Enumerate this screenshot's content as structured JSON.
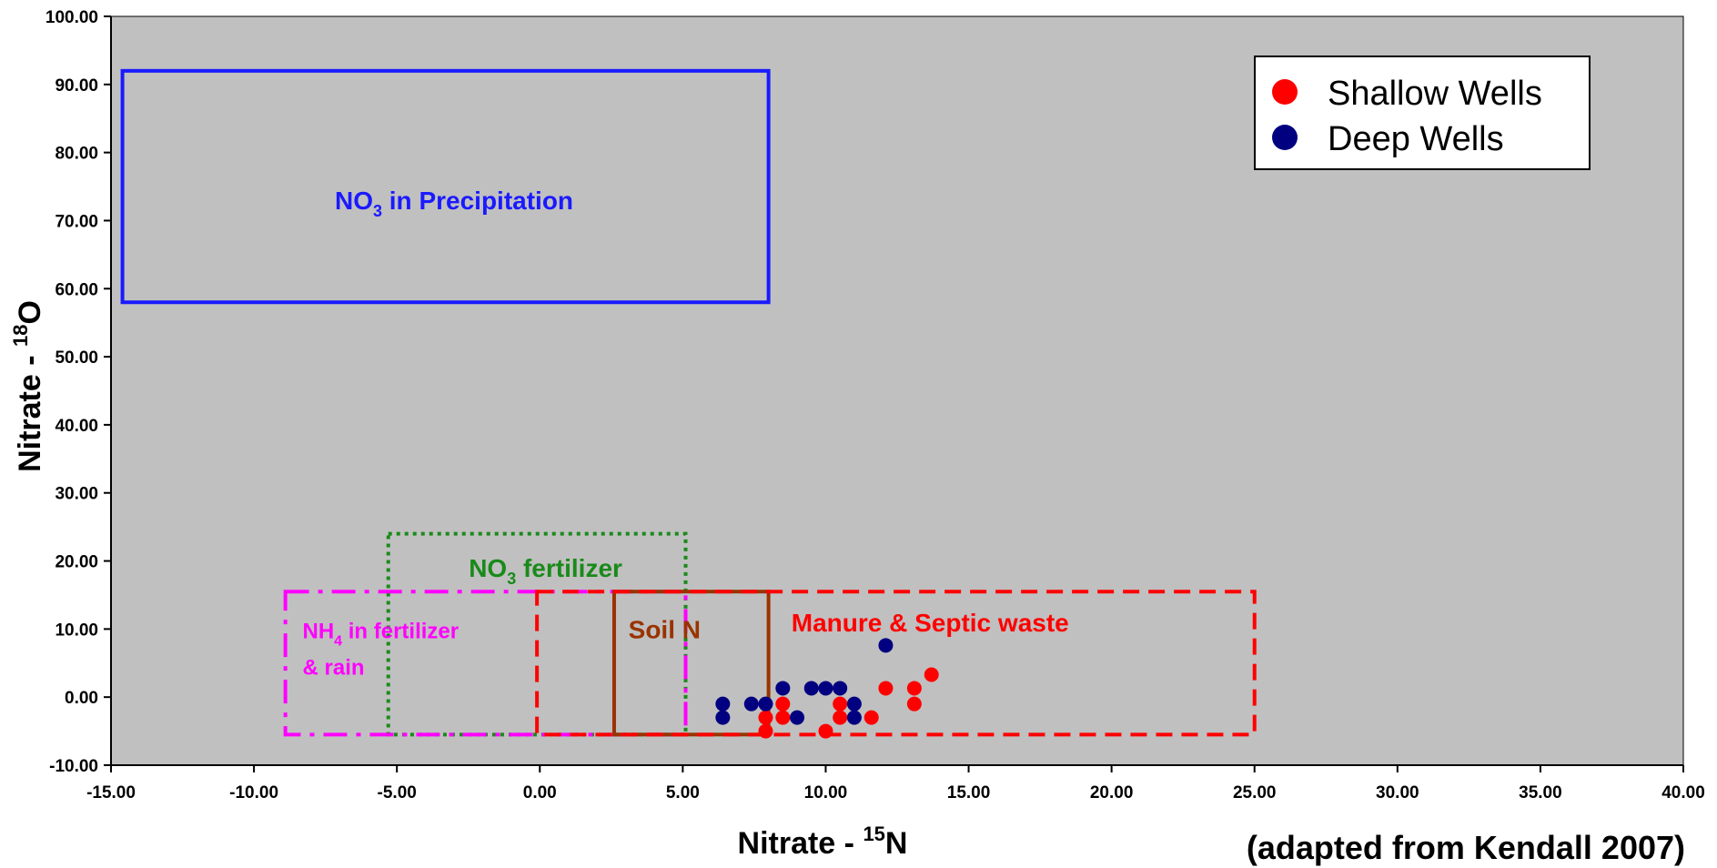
{
  "chart_data": {
    "type": "scatter",
    "xlabel": {
      "main": "Nitrate - ",
      "sup": "15",
      "tail": "N"
    },
    "ylabel": {
      "main": "Nitrate - ",
      "sup": "18",
      "tail": "O"
    },
    "xlim": [
      -15,
      40
    ],
    "ylim": [
      -10,
      100
    ],
    "x_ticks": [
      "-15.00",
      "-10.00",
      "-5.00",
      "0.00",
      "5.00",
      "10.00",
      "15.00",
      "20.00",
      "25.00",
      "30.00",
      "35.00",
      "40.00"
    ],
    "y_ticks": [
      "-10.00",
      "0.00",
      "10.00",
      "20.00",
      "30.00",
      "40.00",
      "50.00",
      "60.00",
      "70.00",
      "80.00",
      "90.00",
      "100.00"
    ],
    "grid": false,
    "plot_background": "#c0c0c0",
    "legend_position": "top-right",
    "credit": "(adapted from Kendall 2007)",
    "regions": [
      {
        "id": "precip",
        "label_main": "NO",
        "label_sub": "3",
        "label_tail": " in Precipitation",
        "color": "#1a1aff",
        "style": "solid",
        "x": [
          -14.6,
          8.0
        ],
        "y": [
          58,
          92
        ],
        "label_at": [
          -3.0,
          73
        ]
      },
      {
        "id": "no3fert",
        "label_main": "NO",
        "label_sub": "3",
        "label_tail": " fertilizer",
        "color": "#1a8a1a",
        "style": "dotted",
        "x": [
          -5.3,
          5.1
        ],
        "y": [
          -5.5,
          24
        ],
        "label_at": [
          0.2,
          19
        ]
      },
      {
        "id": "nh4",
        "label_main": "NH",
        "label_sub": "4",
        "label_tail": " in fertilizer",
        "label_line2": "& rain",
        "color": "#ff00ff",
        "style": "dashdot",
        "x": [
          -8.9,
          5.1
        ],
        "y": [
          -5.5,
          15.5
        ],
        "label_at": [
          -8.3,
          10
        ]
      },
      {
        "id": "soil",
        "label_main": "Soil N",
        "color": "#993300",
        "style": "solid",
        "x": [
          2.6,
          8.0
        ],
        "y": [
          -5.5,
          15.5
        ],
        "label_at": [
          3.1,
          10
        ]
      },
      {
        "id": "manure",
        "label_main": "Manure & Septic waste",
        "color": "#ff0000",
        "style": "dashed",
        "x": [
          -0.1,
          25.0
        ],
        "y": [
          -5.5,
          15.5
        ],
        "label_at": [
          8.8,
          11
        ]
      }
    ],
    "series": [
      {
        "name": "Shallow Wells",
        "color": "#ff0000",
        "points": [
          [
            7.9,
            -3
          ],
          [
            7.9,
            -5
          ],
          [
            8.5,
            -1
          ],
          [
            8.5,
            -3
          ],
          [
            10.0,
            -5
          ],
          [
            10.5,
            -1
          ],
          [
            10.5,
            -3
          ],
          [
            11.6,
            -3
          ],
          [
            12.1,
            1.3
          ],
          [
            13.1,
            1.3
          ],
          [
            13.1,
            -1
          ],
          [
            13.7,
            3.3
          ]
        ]
      },
      {
        "name": "Deep Wells",
        "color": "#000080",
        "points": [
          [
            6.4,
            -1
          ],
          [
            6.4,
            -3
          ],
          [
            7.4,
            -1
          ],
          [
            7.9,
            -1
          ],
          [
            8.5,
            1.3
          ],
          [
            9.0,
            -3
          ],
          [
            9.5,
            1.3
          ],
          [
            10.0,
            1.3
          ],
          [
            10.5,
            1.3
          ],
          [
            11.0,
            -1
          ],
          [
            11.0,
            -3
          ],
          [
            12.1,
            7.6
          ]
        ]
      }
    ]
  }
}
